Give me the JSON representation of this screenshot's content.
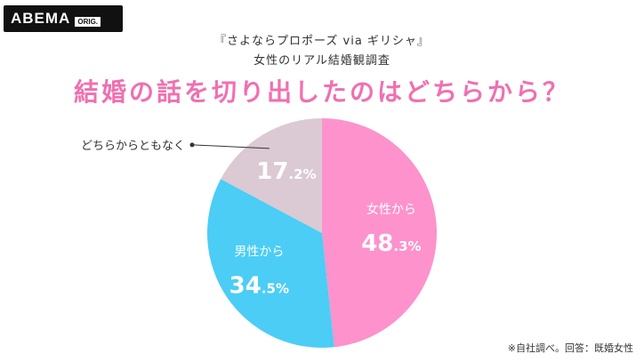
{
  "brand": {
    "name": "ABEMA",
    "tag": "ORIG."
  },
  "subtitle_1": "『さよならプロポーズ via ギリシャ』",
  "subtitle_2": "女性のリアル結婚観調査",
  "title": "結婚の話を切り出したのはどちらから？",
  "footnote": "※自社調べ。回答：既婚女性",
  "chart_data": {
    "type": "pie",
    "title": "結婚の話を切り出したのはどちらから？",
    "slices": [
      {
        "label": "女性から",
        "value": 48.3,
        "display_int": "48",
        "display_dec": ".3%",
        "color": "#fd92cc",
        "text_color": "#ffffff"
      },
      {
        "label": "男性から",
        "value": 34.5,
        "display_int": "34",
        "display_dec": ".5%",
        "color": "#4bcdf6",
        "text_color": "#ffffff"
      },
      {
        "label": "どちらからともなく",
        "value": 17.2,
        "display_int": "17",
        "display_dec": ".2%",
        "color": "#dbc9d3",
        "text_color": "#ffffff"
      }
    ]
  }
}
